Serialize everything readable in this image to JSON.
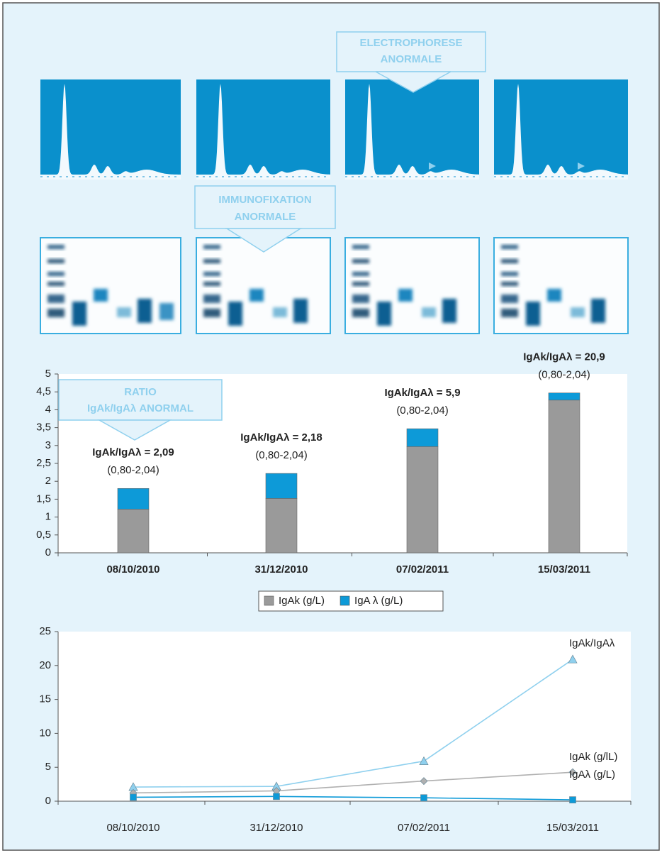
{
  "callouts": [
    {
      "lines": [
        "ELECTROPHORESE",
        "ANORMALE"
      ]
    },
    {
      "lines": [
        "IMMUNOFIXATION",
        "ANORMALE"
      ]
    },
    {
      "lines": [
        "RATIO",
        "IgAk/IgAλ ANORMAL"
      ]
    }
  ],
  "chart_data": [
    {
      "type": "bar",
      "categories": [
        "08/10/2010",
        "31/12/2010",
        "07/02/2011",
        "15/03/2011"
      ],
      "series": [
        {
          "name": "IgAk (g/L)",
          "color": "#9a9a9a",
          "values": [
            1.22,
            1.52,
            2.97,
            4.27
          ]
        },
        {
          "name": "IgA λ (g/L)",
          "color": "#0d9ad8",
          "values": [
            0.58,
            0.7,
            0.5,
            0.2
          ]
        }
      ],
      "annotations": [
        {
          "text": "IgAk/IgAλ = 2,09",
          "range": "(0,80-2,04)"
        },
        {
          "text": "IgAk/IgAλ = 2,18",
          "range": "(0,80-2,04)"
        },
        {
          "text": "IgAk/IgAλ = 5,9",
          "range": "(0,80-2,04)"
        },
        {
          "text": "IgAk/IgAλ = 20,9",
          "range": "(0,80-2,04)"
        }
      ],
      "ylim": [
        0,
        5
      ],
      "yticks": [
        0,
        {
          "value": 0.5,
          "label": "0,5"
        },
        1,
        {
          "value": 1.5,
          "label": "1,5"
        },
        2,
        {
          "value": 2.5,
          "label": "2,5"
        },
        3,
        {
          "value": 3.5,
          "label": "3,5"
        },
        4,
        {
          "value": 4.5,
          "label": "4,5"
        },
        5
      ],
      "legend": "bottom"
    },
    {
      "type": "line",
      "categories": [
        "08/10/2010",
        "31/12/2010",
        "07/02/2011",
        "15/03/2011"
      ],
      "series": [
        {
          "name": "IgAk/IgAλ",
          "color": "#8fd0ee",
          "marker": "triangle",
          "values": [
            2.09,
            2.18,
            5.9,
            20.9
          ]
        },
        {
          "name": "IgAk (g/lL)",
          "color": "#b0b0b0",
          "marker": "diamond",
          "values": [
            1.22,
            1.52,
            2.97,
            4.27
          ]
        },
        {
          "name": "IgAλ (g/L)",
          "color": "#0d9ad8",
          "marker": "square",
          "values": [
            0.58,
            0.7,
            0.5,
            0.2
          ]
        }
      ],
      "ylim": [
        0,
        25
      ],
      "yticks": [
        0,
        5,
        10,
        15,
        20,
        25
      ]
    }
  ]
}
